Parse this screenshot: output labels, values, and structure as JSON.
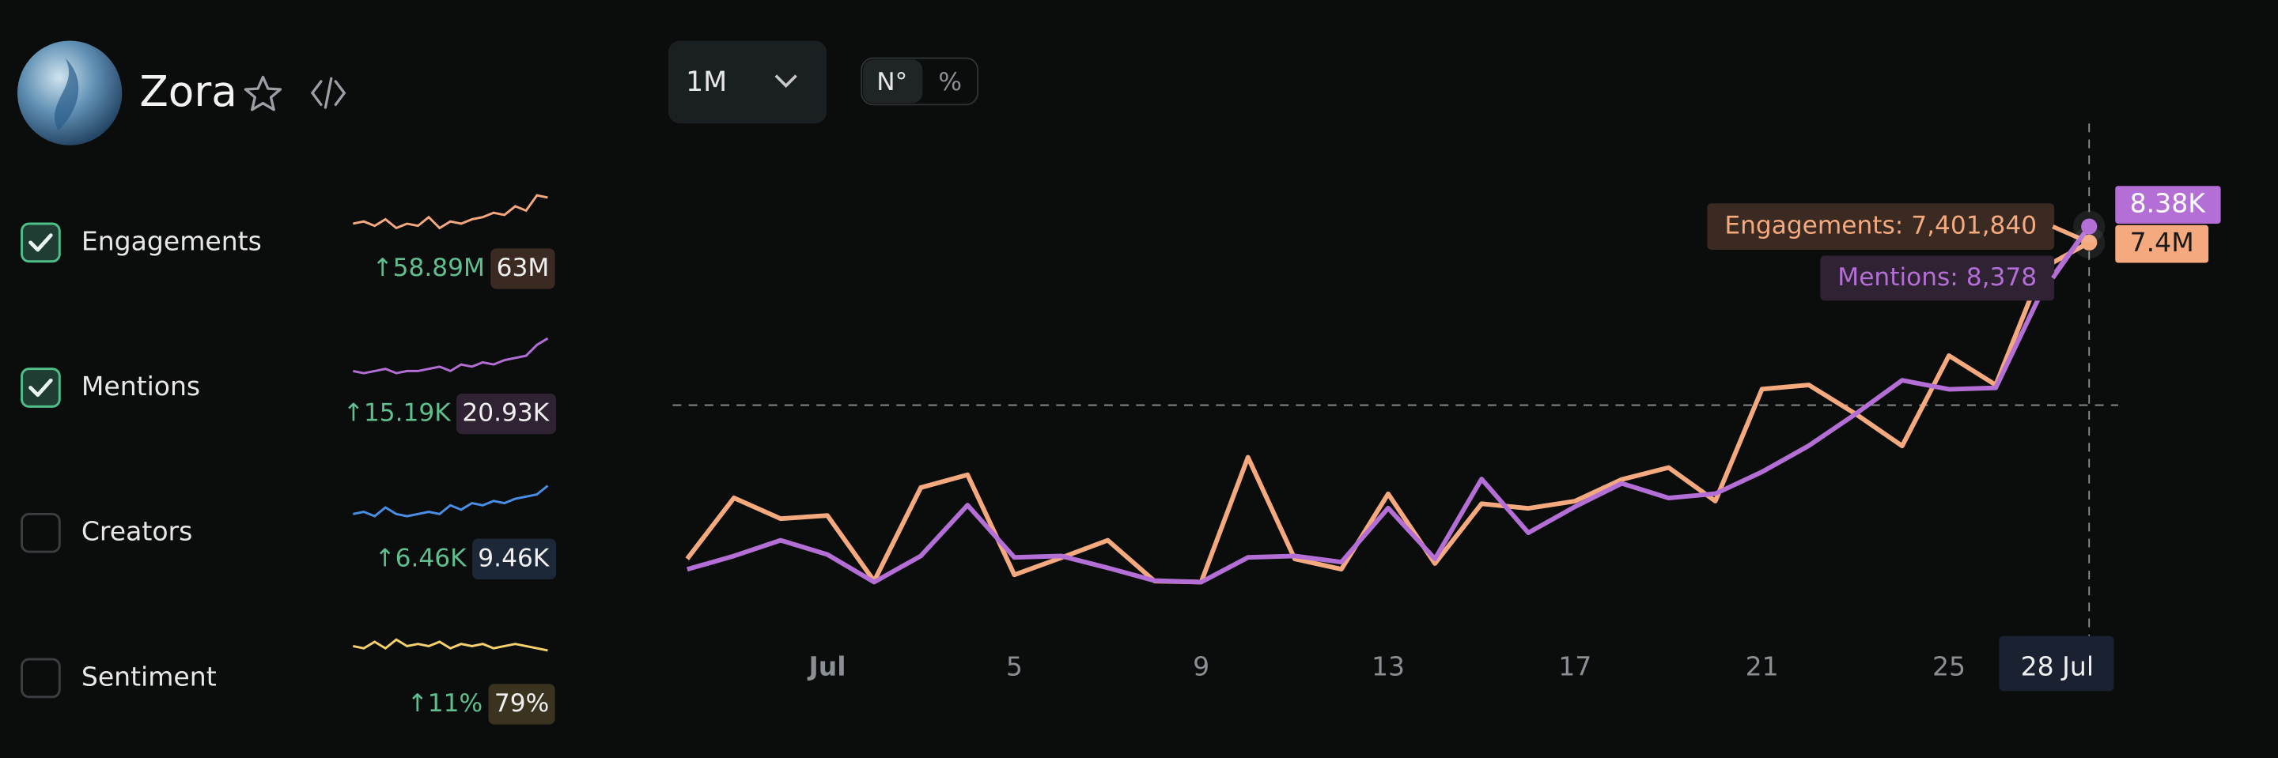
{
  "header": {
    "title": "Zora"
  },
  "controls": {
    "range": "1M",
    "modes": [
      "N°",
      "%"
    ]
  },
  "metrics": [
    {
      "name": "Engagements",
      "checked": true,
      "color": "#f5a97f",
      "badge": "#3a2a22",
      "change": "↑58.89M",
      "total": "63M",
      "spark": [
        30,
        35,
        25,
        40,
        20,
        30,
        25,
        45,
        20,
        35,
        30,
        40,
        45,
        55,
        50,
        70,
        60,
        95,
        90
      ]
    },
    {
      "name": "Mentions",
      "checked": true,
      "color": "#b46fd6",
      "badge": "#2e2233",
      "change": "↑15.19K",
      "total": "20.93K",
      "spark": [
        25,
        20,
        25,
        30,
        20,
        25,
        25,
        30,
        35,
        25,
        40,
        35,
        45,
        40,
        50,
        55,
        60,
        85,
        100
      ]
    },
    {
      "name": "Creators",
      "checked": false,
      "color": "#4a8ee6",
      "badge": "#1c2838",
      "change": "↑6.46K",
      "total": "9.46K",
      "spark": [
        30,
        35,
        25,
        45,
        30,
        25,
        30,
        35,
        30,
        50,
        40,
        55,
        50,
        60,
        55,
        65,
        70,
        75,
        95
      ]
    },
    {
      "name": "Sentiment",
      "checked": false,
      "color": "#f5d26b",
      "badge": "#3a3320",
      "change": "↑11%",
      "total": "79%",
      "spark": [
        60,
        55,
        70,
        55,
        75,
        60,
        65,
        60,
        70,
        55,
        65,
        60,
        65,
        55,
        60,
        65,
        60,
        55,
        50
      ]
    }
  ],
  "chart_data": {
    "type": "line",
    "categories": [
      null,
      null,
      null,
      "Jul",
      null,
      null,
      null,
      "5",
      null,
      null,
      null,
      "9",
      null,
      null,
      null,
      "13",
      null,
      null,
      null,
      "17",
      null,
      null,
      null,
      "21",
      null,
      null,
      null,
      "25",
      null,
      null,
      "28 Jul"
    ],
    "ylim": [
      0,
      9850000
    ],
    "y2lim": [
      0,
      10700
    ],
    "series": [
      {
        "color": "#f5a97f",
        "tooltip": "Engagements: 7,401,840",
        "end_label": "7.4M",
        "values": [
          1270000,
          2450000,
          2050000,
          2110000,
          840000,
          2650000,
          2900000,
          960000,
          1290000,
          1630000,
          840000,
          820000,
          3240000,
          1270000,
          1070000,
          2530000,
          1180000,
          2340000,
          2250000,
          2390000,
          2810000,
          3040000,
          2390000,
          4560000,
          4640000,
          4080000,
          3460000,
          5210000,
          4640000,
          6900000,
          7401840
        ]
      },
      {
        "color": "#b46fd6",
        "tooltip": "Mentions: 8,378",
        "end_label": "8.38K",
        "axis": "y2",
        "values": [
          1160,
          1440,
          1770,
          1470,
          890,
          1440,
          2510,
          1410,
          1440,
          1190,
          920,
          890,
          1410,
          1440,
          1310,
          2450,
          1380,
          3060,
          1930,
          2480,
          2970,
          2660,
          2750,
          3210,
          3760,
          4430,
          5140,
          4950,
          4980,
          7030,
          8378
        ]
      }
    ]
  }
}
